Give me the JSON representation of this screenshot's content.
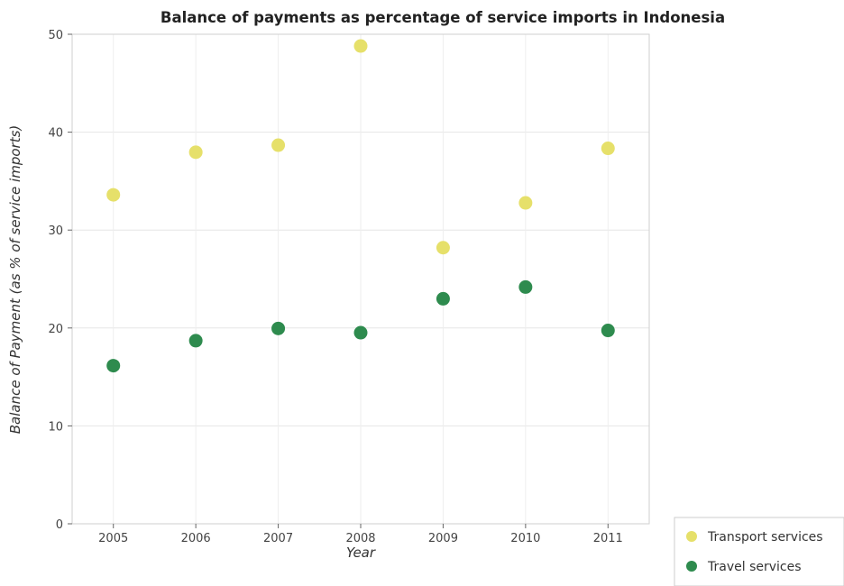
{
  "chart_data": {
    "type": "scatter",
    "title": "Balance of payments as percentage of service imports in Indonesia",
    "xlabel": "Year",
    "ylabel": "Balance of Payment (as % of service imports)",
    "categories": [
      "2005",
      "2006",
      "2007",
      "2008",
      "2009",
      "2010",
      "2011"
    ],
    "ylim": [
      0,
      50
    ],
    "yticks": [
      "0",
      "10",
      "20",
      "30",
      "40",
      "50"
    ],
    "grid": true,
    "legend_position": "bottom-right",
    "series": [
      {
        "name": "Transport services",
        "color": "#e6e06a",
        "values": [
          33.6,
          37.95,
          38.67,
          48.8,
          28.2,
          32.78,
          38.35
        ]
      },
      {
        "name": "Travel services",
        "color": "#2e8b4e",
        "values": [
          16.15,
          18.7,
          19.95,
          19.52,
          22.98,
          24.18,
          19.75
        ]
      }
    ]
  }
}
